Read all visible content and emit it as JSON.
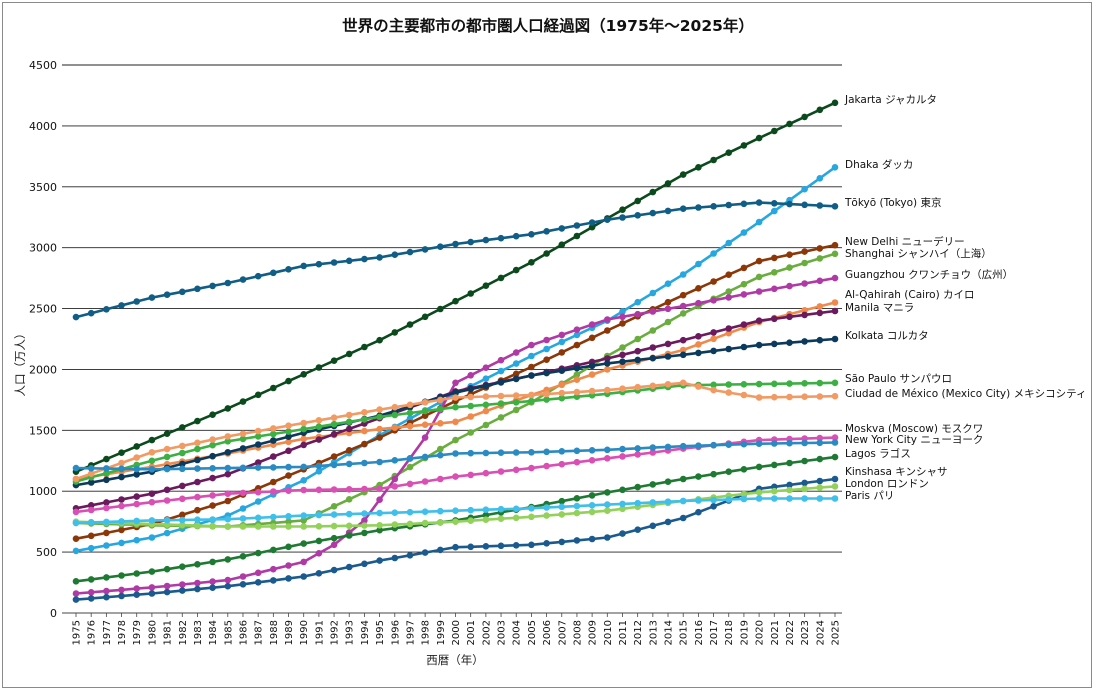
{
  "chart_data": {
    "type": "line",
    "title": "世界の主要都市の都市圏人口経過図（1975年〜2025年）",
    "xlabel": "西暦（年）",
    "ylabel": "人口（万人）",
    "xlim": [
      1975,
      2025
    ],
    "ylim": [
      0,
      4500
    ],
    "yticks": [
      0,
      500,
      1000,
      1500,
      2000,
      2500,
      3000,
      3500,
      4000,
      4500
    ],
    "grid": "horizontal",
    "legend": "labels at line ends (right)",
    "series": [
      {
        "name": "Jakarta ジャカルタ",
        "color": "#0b4a1c",
        "anchors": [
          [
            1975,
            1160
          ],
          [
            1985,
            1680
          ],
          [
            1995,
            2240
          ],
          [
            2000,
            2560
          ],
          [
            2005,
            2880
          ],
          [
            2010,
            3240
          ],
          [
            2015,
            3600
          ],
          [
            2020,
            3900
          ],
          [
            2025,
            4190
          ]
        ]
      },
      {
        "name": "Dhaka ダッカ",
        "color": "#27a7df",
        "anchors": [
          [
            1975,
            510
          ],
          [
            1980,
            620
          ],
          [
            1985,
            800
          ],
          [
            1990,
            1090
          ],
          [
            1995,
            1460
          ],
          [
            2000,
            1800
          ],
          [
            2005,
            2110
          ],
          [
            2010,
            2400
          ],
          [
            2015,
            2780
          ],
          [
            2020,
            3210
          ],
          [
            2025,
            3660
          ]
        ]
      },
      {
        "name": "Tōkyō (Tokyo) 東京",
        "color": "#105d86",
        "anchors": [
          [
            1975,
            2430
          ],
          [
            1980,
            2590
          ],
          [
            1985,
            2710
          ],
          [
            1990,
            2850
          ],
          [
            1995,
            2920
          ],
          [
            2000,
            3030
          ],
          [
            2005,
            3110
          ],
          [
            2010,
            3230
          ],
          [
            2015,
            3320
          ],
          [
            2020,
            3370
          ],
          [
            2025,
            3340
          ]
        ]
      },
      {
        "name": "New Delhi ニューデリー",
        "color": "#8b3708",
        "anchors": [
          [
            1975,
            610
          ],
          [
            1980,
            730
          ],
          [
            1985,
            920
          ],
          [
            1990,
            1180
          ],
          [
            1995,
            1440
          ],
          [
            2000,
            1740
          ],
          [
            2005,
            2020
          ],
          [
            2010,
            2320
          ],
          [
            2015,
            2610
          ],
          [
            2020,
            2890
          ],
          [
            2025,
            3020
          ]
        ]
      },
      {
        "name": "Shanghai シャンハイ（上海）",
        "color": "#6aad3f",
        "anchors": [
          [
            1975,
            740
          ],
          [
            1980,
            720
          ],
          [
            1985,
            710
          ],
          [
            1990,
            760
          ],
          [
            1995,
            1050
          ],
          [
            2000,
            1420
          ],
          [
            2005,
            1730
          ],
          [
            2010,
            2110
          ],
          [
            2015,
            2460
          ],
          [
            2020,
            2760
          ],
          [
            2025,
            2950
          ]
        ]
      },
      {
        "name": "Guangzhou クワンチョウ（広州）",
        "color": "#b03aa5",
        "anchors": [
          [
            1975,
            160
          ],
          [
            1980,
            210
          ],
          [
            1985,
            270
          ],
          [
            1990,
            420
          ],
          [
            1992,
            560
          ],
          [
            1994,
            760
          ],
          [
            1996,
            1100
          ],
          [
            1998,
            1440
          ],
          [
            2000,
            1890
          ],
          [
            2005,
            2200
          ],
          [
            2010,
            2410
          ],
          [
            2015,
            2520
          ],
          [
            2020,
            2640
          ],
          [
            2025,
            2750
          ]
        ]
      },
      {
        "name": "Al-Qahirah (Cairo) カイロ",
        "color": "#ef8a4c",
        "anchors": [
          [
            1975,
            1100
          ],
          [
            1980,
            1200
          ],
          [
            1985,
            1310
          ],
          [
            1990,
            1430
          ],
          [
            1995,
            1510
          ],
          [
            2000,
            1570
          ],
          [
            2005,
            1790
          ],
          [
            2010,
            2000
          ],
          [
            2015,
            2160
          ],
          [
            2020,
            2390
          ],
          [
            2025,
            2550
          ]
        ]
      },
      {
        "name": "Manila マニラ",
        "color": "#6b1a5e",
        "anchors": [
          [
            1975,
            860
          ],
          [
            1980,
            980
          ],
          [
            1985,
            1140
          ],
          [
            1990,
            1380
          ],
          [
            1995,
            1600
          ],
          [
            2000,
            1820
          ],
          [
            2005,
            1950
          ],
          [
            2010,
            2090
          ],
          [
            2015,
            2240
          ],
          [
            2020,
            2400
          ],
          [
            2025,
            2480
          ]
        ]
      },
      {
        "name": "Kolkata コルカタ",
        "color": "#0c3a5c",
        "anchors": [
          [
            1975,
            1050
          ],
          [
            1980,
            1160
          ],
          [
            1985,
            1320
          ],
          [
            1990,
            1480
          ],
          [
            1995,
            1620
          ],
          [
            2000,
            1810
          ],
          [
            2005,
            1950
          ],
          [
            2010,
            2050
          ],
          [
            2015,
            2120
          ],
          [
            2020,
            2200
          ],
          [
            2025,
            2250
          ]
        ]
      },
      {
        "name": "São Paulo サンパウロ",
        "color": "#3cb043",
        "anchors": [
          [
            1975,
            1080
          ],
          [
            1980,
            1250
          ],
          [
            1985,
            1410
          ],
          [
            1990,
            1510
          ],
          [
            1995,
            1610
          ],
          [
            2000,
            1690
          ],
          [
            2005,
            1740
          ],
          [
            2010,
            1800
          ],
          [
            2015,
            1870
          ],
          [
            2020,
            1880
          ],
          [
            2025,
            1890
          ]
        ]
      },
      {
        "name": "Ciudad de México (Mexico City) メキシコシティ",
        "color": "#f29a63",
        "anchors": [
          [
            1975,
            1100
          ],
          [
            1980,
            1320
          ],
          [
            1985,
            1450
          ],
          [
            1990,
            1560
          ],
          [
            1995,
            1670
          ],
          [
            2000,
            1770
          ],
          [
            2005,
            1790
          ],
          [
            2010,
            1830
          ],
          [
            2015,
            1890
          ],
          [
            2017,
            1830
          ],
          [
            2020,
            1770
          ],
          [
            2025,
            1780
          ]
        ]
      },
      {
        "name": "Moskva (Moscow) モスクワ",
        "color": "#d94fb3",
        "anchors": [
          [
            1975,
            830
          ],
          [
            1980,
            910
          ],
          [
            1985,
            980
          ],
          [
            1990,
            1010
          ],
          [
            1995,
            1020
          ],
          [
            2000,
            1120
          ],
          [
            2005,
            1190
          ],
          [
            2010,
            1270
          ],
          [
            2015,
            1350
          ],
          [
            2020,
            1420
          ],
          [
            2025,
            1440
          ]
        ]
      },
      {
        "name": "New York City ニューヨーク",
        "color": "#2a8bc2",
        "anchors": [
          [
            1975,
            1190
          ],
          [
            1980,
            1180
          ],
          [
            1985,
            1190
          ],
          [
            1990,
            1200
          ],
          [
            1995,
            1240
          ],
          [
            2000,
            1310
          ],
          [
            2005,
            1320
          ],
          [
            2010,
            1340
          ],
          [
            2015,
            1370
          ],
          [
            2020,
            1390
          ],
          [
            2025,
            1400
          ]
        ]
      },
      {
        "name": "Lagos ラゴス",
        "color": "#1e7a32",
        "anchors": [
          [
            1975,
            260
          ],
          [
            1980,
            340
          ],
          [
            1985,
            440
          ],
          [
            1990,
            570
          ],
          [
            1995,
            680
          ],
          [
            2000,
            760
          ],
          [
            2005,
            870
          ],
          [
            2010,
            990
          ],
          [
            2015,
            1100
          ],
          [
            2020,
            1200
          ],
          [
            2025,
            1280
          ]
        ]
      },
      {
        "name": "Kinshasa キンシャサ",
        "color": "#1a5a8e",
        "anchors": [
          [
            1975,
            110
          ],
          [
            1980,
            160
          ],
          [
            1985,
            220
          ],
          [
            1990,
            300
          ],
          [
            1995,
            430
          ],
          [
            2000,
            540
          ],
          [
            2005,
            560
          ],
          [
            2010,
            620
          ],
          [
            2015,
            780
          ],
          [
            2020,
            1020
          ],
          [
            2025,
            1100
          ]
        ]
      },
      {
        "name": "London ロンドン",
        "color": "#93d15b",
        "anchors": [
          [
            1975,
            750
          ],
          [
            1980,
            730
          ],
          [
            1985,
            710
          ],
          [
            1990,
            710
          ],
          [
            1995,
            720
          ],
          [
            2000,
            750
          ],
          [
            2005,
            790
          ],
          [
            2010,
            840
          ],
          [
            2015,
            920
          ],
          [
            2020,
            990
          ],
          [
            2025,
            1040
          ]
        ]
      },
      {
        "name": "Paris パリ",
        "color": "#3fbfea",
        "anchors": [
          [
            1975,
            740
          ],
          [
            1980,
            760
          ],
          [
            1985,
            770
          ],
          [
            1990,
            800
          ],
          [
            1995,
            820
          ],
          [
            2000,
            840
          ],
          [
            2005,
            860
          ],
          [
            2010,
            890
          ],
          [
            2015,
            920
          ],
          [
            2020,
            940
          ],
          [
            2025,
            940
          ]
        ]
      }
    ],
    "point_years": "1975–2025 (annual markers)"
  }
}
